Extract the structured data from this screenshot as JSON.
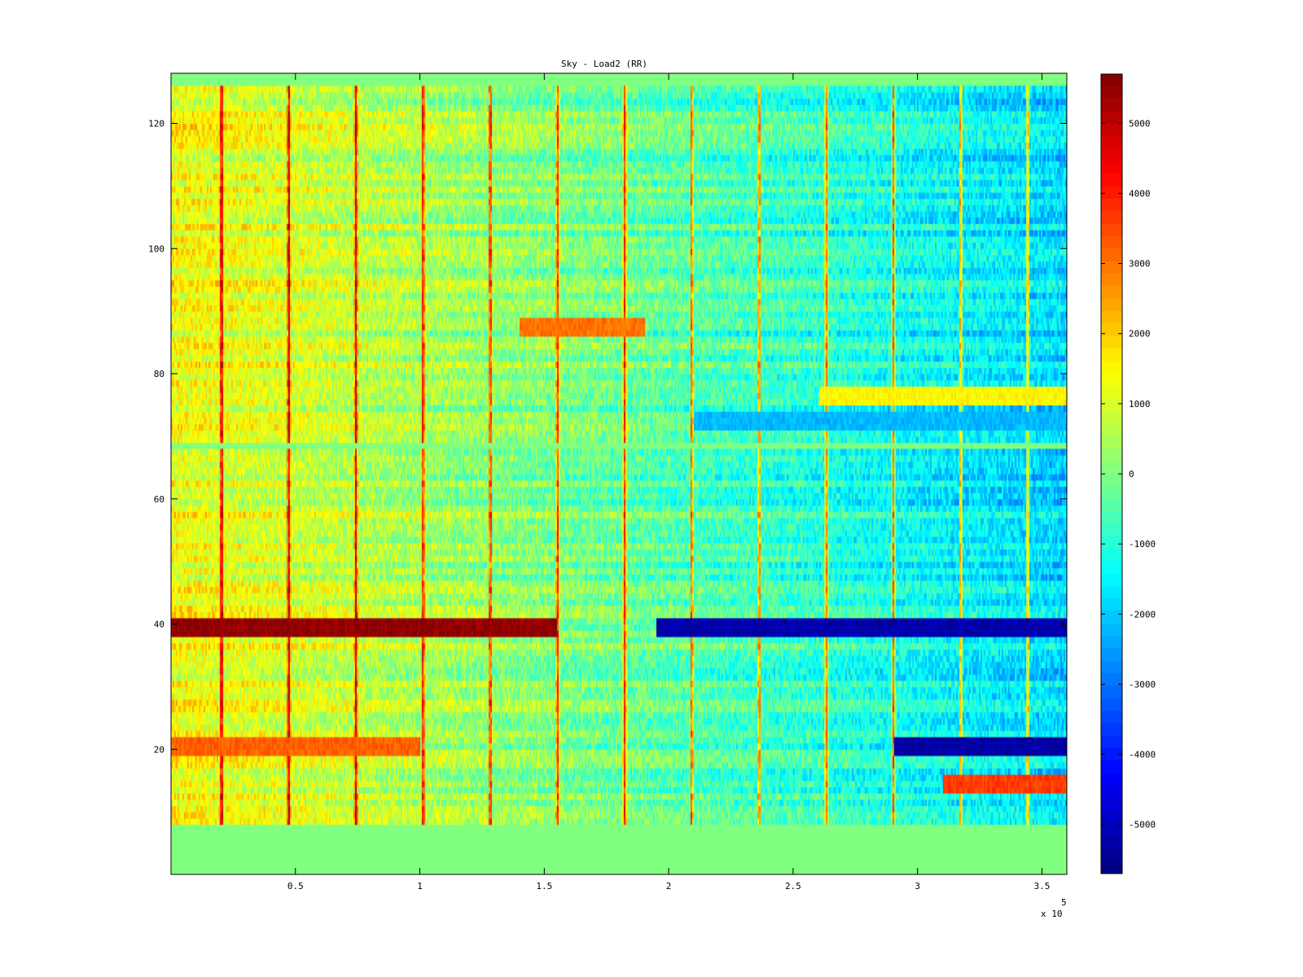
{
  "chart_data": {
    "type": "heatmap",
    "title": "Sky - Load2 (RR)",
    "xlabel": "",
    "ylabel": "",
    "x_exponent_label": "x 10",
    "x_exponent_power": "5",
    "xlim": [
      0,
      3.6
    ],
    "ylim": [
      0,
      128
    ],
    "x_ticks": [
      0.5,
      1,
      1.5,
      2,
      2.5,
      3,
      3.5
    ],
    "x_tick_labels": [
      "0.5",
      "1",
      "1.5",
      "2",
      "2.5",
      "3",
      "3.5"
    ],
    "y_ticks": [
      20,
      40,
      60,
      80,
      100,
      120
    ],
    "y_tick_labels": [
      "20",
      "40",
      "60",
      "80",
      "100",
      "120"
    ],
    "colorbar": {
      "colormap": "jet",
      "clim": [
        -5700,
        5700
      ],
      "ticks": [
        5000,
        4000,
        3000,
        2000,
        1000,
        0,
        -1000,
        -2000,
        -3000,
        -4000,
        -5000
      ],
      "tick_labels": [
        "5000",
        "4000",
        "3000",
        "2000",
        "1000",
        "0",
        "-1000",
        "-2000",
        "-3000",
        "-4000",
        "-5000"
      ]
    },
    "channel_rows_filled": [
      [
        8,
        67
      ],
      [
        69,
        125
      ]
    ],
    "background_value": 0,
    "vertical_spike_x": [
      0.2,
      0.47,
      0.74,
      1.01,
      1.28,
      1.55,
      1.82,
      2.09,
      2.36,
      2.63,
      2.9,
      3.17,
      3.44
    ],
    "horizontal_features": [
      {
        "row": 39,
        "x_range": [
          0,
          1.55
        ],
        "value": 5500
      },
      {
        "row": 39,
        "x_range": [
          1.95,
          3.6
        ],
        "value": -5200
      },
      {
        "row": 20,
        "x_range": [
          2.9,
          3.6
        ],
        "value": -5300
      },
      {
        "row": 20,
        "x_range": [
          0,
          1.0
        ],
        "value": 3200
      },
      {
        "row": 14,
        "x_range": [
          3.1,
          3.6
        ],
        "value": 3600
      },
      {
        "row": 87,
        "x_range": [
          1.4,
          1.9
        ],
        "value": 3000
      },
      {
        "row": 76,
        "x_range": [
          2.6,
          3.6
        ],
        "value": 1500
      },
      {
        "row": 72,
        "x_range": [
          2.1,
          3.6
        ],
        "value": -2200
      }
    ]
  }
}
